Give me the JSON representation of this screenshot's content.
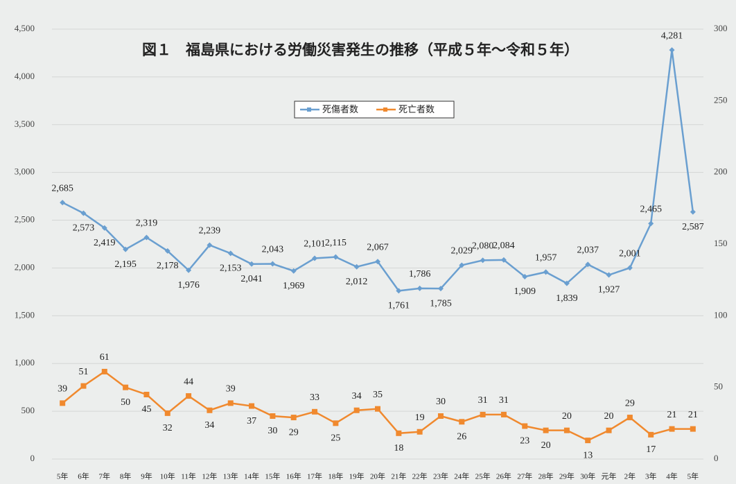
{
  "chart_data": {
    "type": "line",
    "title": "図１　福島県における労働災害発生の推移（平成５年～令和５年）",
    "categories": [
      "5年",
      "6年",
      "7年",
      "8年",
      "9年",
      "10年",
      "11年",
      "12年",
      "13年",
      "14年",
      "15年",
      "16年",
      "17年",
      "18年",
      "19年",
      "20年",
      "21年",
      "22年",
      "23年",
      "24年",
      "25年",
      "26年",
      "27年",
      "28年",
      "29年",
      "30年",
      "元年",
      "2年",
      "3年",
      "4年",
      "5年"
    ],
    "series": [
      {
        "name": "死傷者数",
        "color": "#6a9fd0",
        "values": [
          2685,
          2573,
          2419,
          2195,
          2319,
          2178,
          1976,
          2239,
          2153,
          2041,
          2043,
          1969,
          2101,
          2115,
          2012,
          2067,
          1761,
          1786,
          1785,
          2029,
          2080,
          2084,
          1909,
          1957,
          1839,
          2037,
          1927,
          2001,
          2465,
          4281,
          2587
        ],
        "value_labels": [
          "2,685",
          "2,573",
          "2,419",
          "2,195",
          "2,319",
          "2,178",
          "1,976",
          "2,239",
          "2,153",
          "2,041",
          "2,043",
          "1,969",
          "2,101",
          "2,115",
          "2,012",
          "2,067",
          "1,761",
          "1,786",
          "1,785",
          "2,029",
          "2,080",
          "2,084",
          "1,909",
          "1,957",
          "1,839",
          "2,037",
          "1,927",
          "2,001",
          "2,465",
          "4,281",
          "2,587"
        ]
      },
      {
        "name": "死亡者数",
        "color": "#f0892e",
        "axis": "y2",
        "values": [
          39,
          51,
          61,
          50,
          45,
          32,
          44,
          34,
          39,
          37,
          30,
          29,
          33,
          25,
          34,
          35,
          18,
          19,
          30,
          26,
          31,
          31,
          23,
          20,
          20,
          13,
          20,
          29,
          17,
          21,
          21
        ]
      }
    ],
    "ylim": [
      0,
      4500
    ],
    "yticks": [
      0,
      500,
      {
        "value": 1000,
        "label": "1,000"
      },
      {
        "value": 1500,
        "label": "1,500"
      },
      {
        "value": 2000,
        "label": "2,000"
      },
      {
        "value": 2500,
        "label": "2,500"
      },
      {
        "value": 3000,
        "label": "3,000"
      },
      {
        "value": 3500,
        "label": "3,500"
      },
      {
        "value": 4000,
        "label": "4,000"
      },
      {
        "value": 4500,
        "label": "4,500"
      }
    ],
    "y2lim": [
      0,
      300
    ],
    "y2ticks": [
      0,
      50,
      100,
      150,
      200,
      250,
      300
    ],
    "grid": true,
    "legend": "top"
  }
}
